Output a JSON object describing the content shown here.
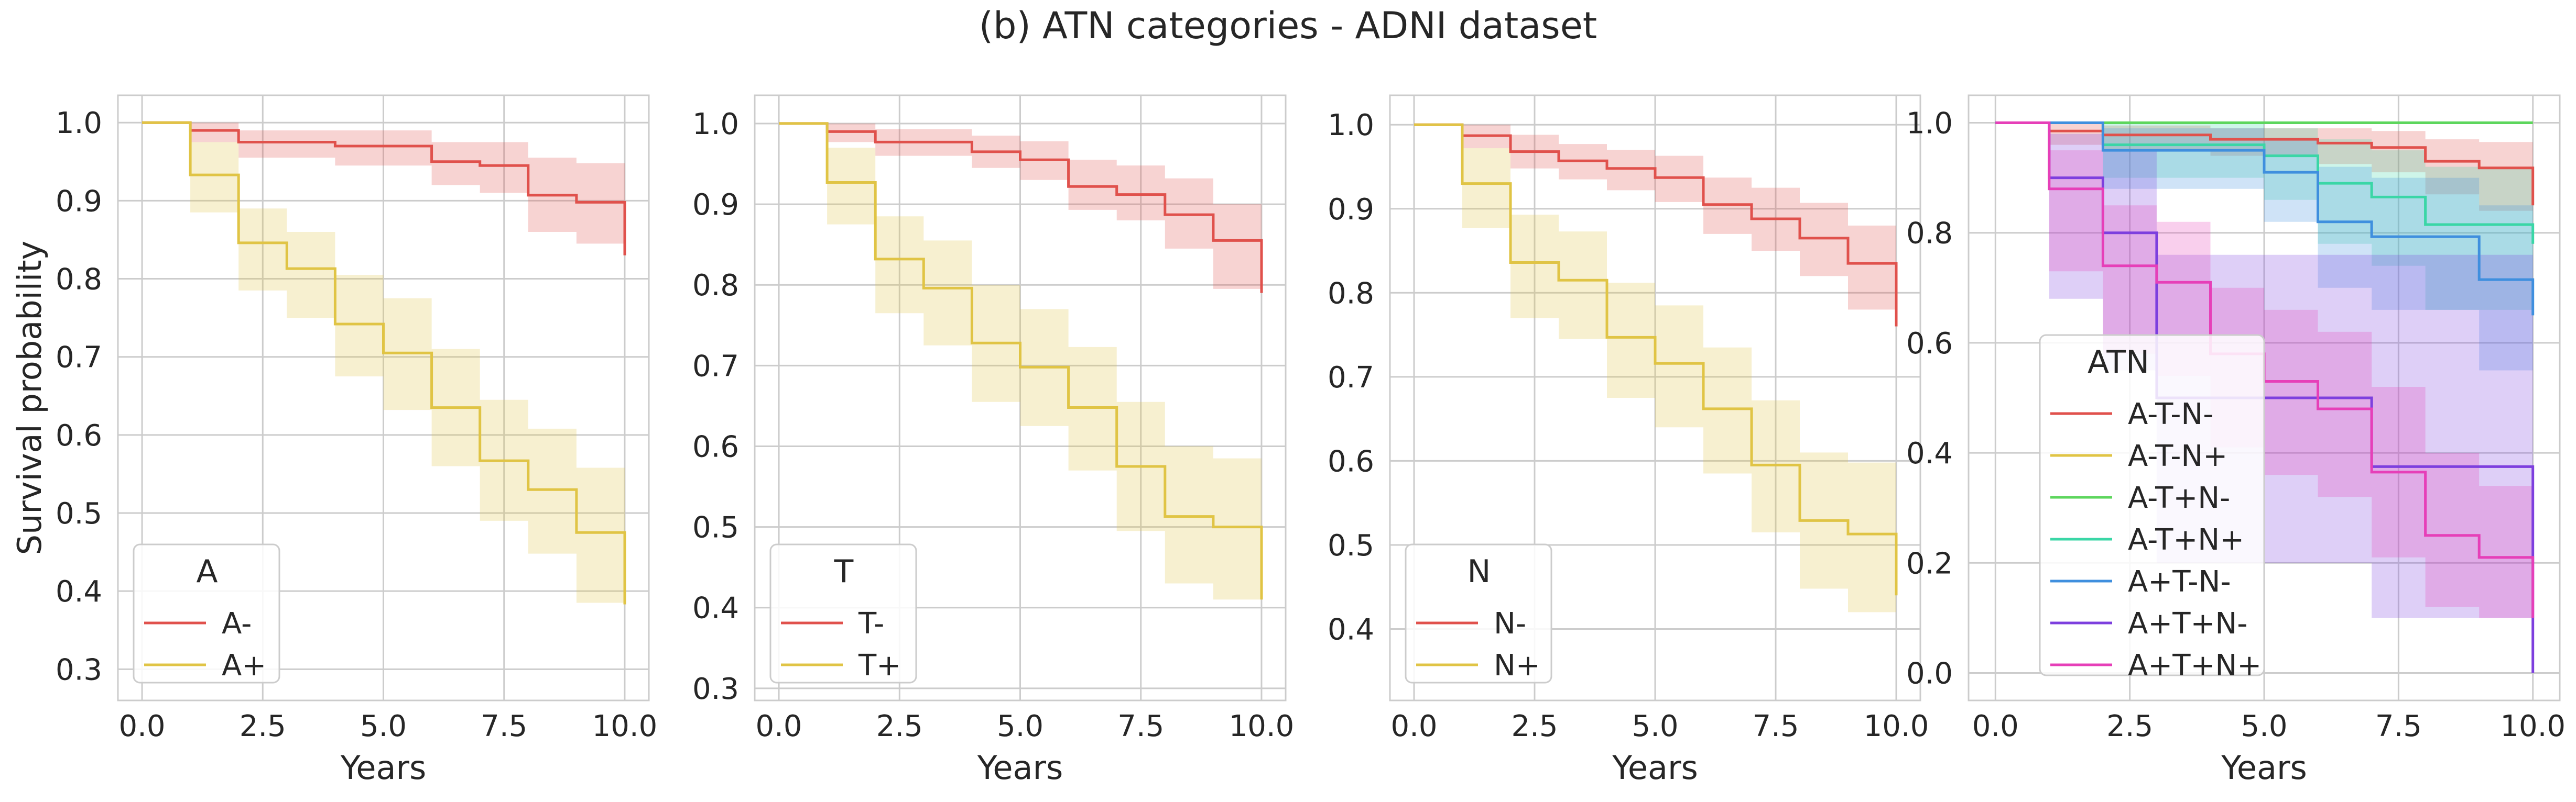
{
  "figure_title": "(b) ATN categories - ADNI dataset",
  "chart_data": [
    {
      "type": "line",
      "xlabel": "Years",
      "ylabel": "Survival probability",
      "xlim": [
        -0.5,
        10.5
      ],
      "ylim": [
        0.26,
        1.035
      ],
      "xticks": [
        0,
        2.5,
        5,
        7.5,
        10
      ],
      "xtick_labels": [
        "0.0",
        "2.5",
        "5.0",
        "7.5",
        "10.0"
      ],
      "yticks": [
        0.3,
        0.4,
        0.5,
        0.6,
        0.7,
        0.8,
        0.9,
        1.0
      ],
      "ytick_labels": [
        "0.3",
        "0.4",
        "0.5",
        "0.6",
        "0.7",
        "0.8",
        "0.9",
        "1.0"
      ],
      "grid": true,
      "legend": {
        "title": "A",
        "placement": "lower-left"
      },
      "series": [
        {
          "name": "A-",
          "color": "#e0514c",
          "x": [
            0,
            1,
            2,
            4,
            6,
            7,
            8,
            9,
            10
          ],
          "y": [
            1.0,
            0.99,
            0.975,
            0.97,
            0.95,
            0.945,
            0.907,
            0.898,
            0.83
          ],
          "lower": [
            1.0,
            0.975,
            0.955,
            0.945,
            0.92,
            0.91,
            0.86,
            0.845,
            0.755
          ],
          "upper": [
            1.0,
            1.0,
            0.99,
            0.99,
            0.975,
            0.975,
            0.955,
            0.948,
            0.905
          ]
        },
        {
          "name": "A+",
          "color": "#e0c445",
          "x": [
            0,
            1,
            2,
            3,
            4,
            5,
            6,
            7,
            8,
            9,
            10
          ],
          "y": [
            1.0,
            0.933,
            0.846,
            0.813,
            0.742,
            0.705,
            0.635,
            0.567,
            0.53,
            0.475,
            0.383
          ],
          "lower": [
            1.0,
            0.885,
            0.785,
            0.75,
            0.675,
            0.632,
            0.56,
            0.49,
            0.448,
            0.385,
            0.29
          ],
          "upper": [
            1.0,
            0.975,
            0.89,
            0.86,
            0.805,
            0.775,
            0.71,
            0.645,
            0.608,
            0.558,
            0.48
          ]
        }
      ]
    },
    {
      "type": "line",
      "xlabel": "Years",
      "ylabel": "",
      "xlim": [
        -0.5,
        10.5
      ],
      "ylim": [
        0.285,
        1.035
      ],
      "xticks": [
        0,
        2.5,
        5,
        7.5,
        10
      ],
      "xtick_labels": [
        "0.0",
        "2.5",
        "5.0",
        "7.5",
        "10.0"
      ],
      "yticks": [
        0.3,
        0.4,
        0.5,
        0.6,
        0.7,
        0.8,
        0.9,
        1.0
      ],
      "ytick_labels": [
        "0.3",
        "0.4",
        "0.5",
        "0.6",
        "0.7",
        "0.8",
        "0.9",
        "1.0"
      ],
      "grid": true,
      "legend": {
        "title": "T",
        "placement": "lower-left"
      },
      "series": [
        {
          "name": "T-",
          "color": "#e0514c",
          "x": [
            0,
            1,
            2,
            4,
            5,
            6,
            7,
            8,
            9,
            10
          ],
          "y": [
            1.0,
            0.99,
            0.977,
            0.965,
            0.955,
            0.922,
            0.912,
            0.887,
            0.855,
            0.79
          ],
          "lower": [
            1.0,
            0.977,
            0.96,
            0.945,
            0.93,
            0.893,
            0.88,
            0.845,
            0.795,
            0.71
          ],
          "upper": [
            1.0,
            1.0,
            0.993,
            0.985,
            0.978,
            0.955,
            0.948,
            0.932,
            0.9,
            0.87
          ]
        },
        {
          "name": "T+",
          "color": "#e0c445",
          "x": [
            0,
            1,
            2,
            3,
            4,
            5,
            6,
            7,
            8,
            9,
            10
          ],
          "y": [
            1.0,
            0.927,
            0.832,
            0.796,
            0.728,
            0.698,
            0.648,
            0.575,
            0.513,
            0.5,
            0.41
          ],
          "lower": [
            1.0,
            0.875,
            0.765,
            0.725,
            0.655,
            0.625,
            0.57,
            0.495,
            0.43,
            0.41,
            0.31
          ],
          "upper": [
            1.0,
            0.97,
            0.885,
            0.855,
            0.8,
            0.77,
            0.723,
            0.655,
            0.6,
            0.585,
            0.51
          ]
        }
      ]
    },
    {
      "type": "line",
      "xlabel": "Years",
      "ylabel": "",
      "xlim": [
        -0.5,
        10.5
      ],
      "ylim": [
        0.315,
        1.035
      ],
      "xticks": [
        0,
        2.5,
        5,
        7.5,
        10
      ],
      "xtick_labels": [
        "0.0",
        "2.5",
        "5.0",
        "7.5",
        "10.0"
      ],
      "yticks": [
        0.4,
        0.5,
        0.6,
        0.7,
        0.8,
        0.9,
        1.0
      ],
      "ytick_labels": [
        "0.4",
        "0.5",
        "0.6",
        "0.7",
        "0.8",
        "0.9",
        "1.0"
      ],
      "grid": true,
      "legend": {
        "title": "N",
        "placement": "lower-left"
      },
      "series": [
        {
          "name": "N-",
          "color": "#e0514c",
          "x": [
            0,
            1,
            2,
            3,
            4,
            5,
            6,
            7,
            8,
            9,
            10
          ],
          "y": [
            1.0,
            0.987,
            0.968,
            0.957,
            0.948,
            0.937,
            0.905,
            0.888,
            0.865,
            0.835,
            0.76
          ],
          "lower": [
            1.0,
            0.972,
            0.948,
            0.935,
            0.922,
            0.908,
            0.87,
            0.85,
            0.82,
            0.78,
            0.68
          ],
          "upper": [
            1.0,
            1.0,
            0.988,
            0.977,
            0.97,
            0.963,
            0.937,
            0.925,
            0.907,
            0.88,
            0.84
          ]
        },
        {
          "name": "N+",
          "color": "#e0c445",
          "x": [
            0,
            1,
            2,
            3,
            4,
            5,
            6,
            7,
            8,
            9,
            10
          ],
          "y": [
            1.0,
            0.93,
            0.836,
            0.815,
            0.747,
            0.716,
            0.662,
            0.595,
            0.529,
            0.513,
            0.44
          ],
          "lower": [
            1.0,
            0.877,
            0.77,
            0.745,
            0.675,
            0.64,
            0.585,
            0.515,
            0.448,
            0.42,
            0.34
          ],
          "upper": [
            1.0,
            0.972,
            0.893,
            0.873,
            0.812,
            0.785,
            0.735,
            0.672,
            0.61,
            0.598,
            0.53
          ]
        }
      ]
    },
    {
      "type": "line",
      "xlabel": "Years",
      "ylabel": "",
      "xlim": [
        -0.5,
        10.5
      ],
      "ylim": [
        -0.05,
        1.05
      ],
      "xticks": [
        0,
        2.5,
        5,
        7.5,
        10
      ],
      "xtick_labels": [
        "0.0",
        "2.5",
        "5.0",
        "7.5",
        "10.0"
      ],
      "yticks": [
        0.0,
        0.2,
        0.4,
        0.6,
        0.8,
        1.0
      ],
      "ytick_labels": [
        "0.0",
        "0.2",
        "0.4",
        "0.6",
        "0.8",
        "1.0"
      ],
      "grid": true,
      "legend": {
        "title": "ATN",
        "placement": "lower-left"
      },
      "series": [
        {
          "name": "A-T-N-",
          "color": "#e0514c",
          "x": [
            0,
            1,
            2,
            4,
            6,
            7,
            8,
            9,
            10
          ],
          "y": [
            1.0,
            0.985,
            0.978,
            0.97,
            0.963,
            0.955,
            0.93,
            0.918,
            0.85
          ],
          "lower": [
            1.0,
            0.96,
            0.95,
            0.94,
            0.925,
            0.91,
            0.87,
            0.84,
            0.72
          ],
          "upper": [
            1.0,
            1.0,
            0.995,
            0.99,
            0.99,
            0.985,
            0.97,
            0.965,
            0.93
          ]
        },
        {
          "name": "A-T-N+",
          "color": "#e0c445",
          "x": [
            0,
            10
          ],
          "y": [
            1.0,
            1.0
          ],
          "lower": [
            1.0,
            1.0
          ],
          "upper": [
            1.0,
            1.0
          ]
        },
        {
          "name": "A-T+N-",
          "color": "#5dd65d",
          "x": [
            0,
            10
          ],
          "y": [
            1.0,
            1.0
          ],
          "lower": [
            1.0,
            1.0
          ],
          "upper": [
            1.0,
            1.0
          ]
        },
        {
          "name": "A-T+N+",
          "color": "#3ad6a6",
          "x": [
            0,
            2,
            5,
            6,
            7,
            8,
            10
          ],
          "y": [
            1.0,
            0.96,
            0.94,
            0.89,
            0.865,
            0.815,
            0.78
          ],
          "lower": [
            1.0,
            0.9,
            0.86,
            0.78,
            0.74,
            0.66,
            0.6
          ],
          "upper": [
            1.0,
            1.0,
            0.99,
            0.97,
            0.95,
            0.92,
            0.9
          ]
        },
        {
          "name": "A+T-N-",
          "color": "#3f8fde",
          "x": [
            0,
            2,
            5,
            6,
            7,
            9,
            10
          ],
          "y": [
            1.0,
            0.95,
            0.91,
            0.82,
            0.793,
            0.715,
            0.65
          ],
          "lower": [
            1.0,
            0.88,
            0.82,
            0.7,
            0.66,
            0.55,
            0.43
          ],
          "upper": [
            1.0,
            0.99,
            0.97,
            0.92,
            0.9,
            0.85,
            0.8
          ]
        },
        {
          "name": "A+T+N-",
          "color": "#7d3fde",
          "x": [
            0,
            1,
            2,
            3,
            7,
            10
          ],
          "y": [
            1.0,
            0.9,
            0.8,
            0.5,
            0.375,
            0.0
          ],
          "lower": [
            1.0,
            0.68,
            0.55,
            0.2,
            0.1,
            0.0
          ],
          "upper": [
            1.0,
            0.98,
            0.95,
            0.76,
            0.76,
            0.76
          ]
        },
        {
          "name": "A+T+N+",
          "color": "#e63fb8",
          "x": [
            0,
            1,
            2,
            3,
            4,
            5,
            6,
            7,
            8,
            9,
            10
          ],
          "y": [
            1.0,
            0.88,
            0.74,
            0.71,
            0.58,
            0.53,
            0.48,
            0.365,
            0.25,
            0.21,
            0.1
          ],
          "lower": [
            1.0,
            0.73,
            0.58,
            0.54,
            0.41,
            0.36,
            0.32,
            0.21,
            0.12,
            0.1,
            0.0
          ],
          "upper": [
            1.0,
            0.95,
            0.85,
            0.82,
            0.7,
            0.66,
            0.62,
            0.52,
            0.4,
            0.34,
            0.2
          ]
        }
      ]
    }
  ]
}
